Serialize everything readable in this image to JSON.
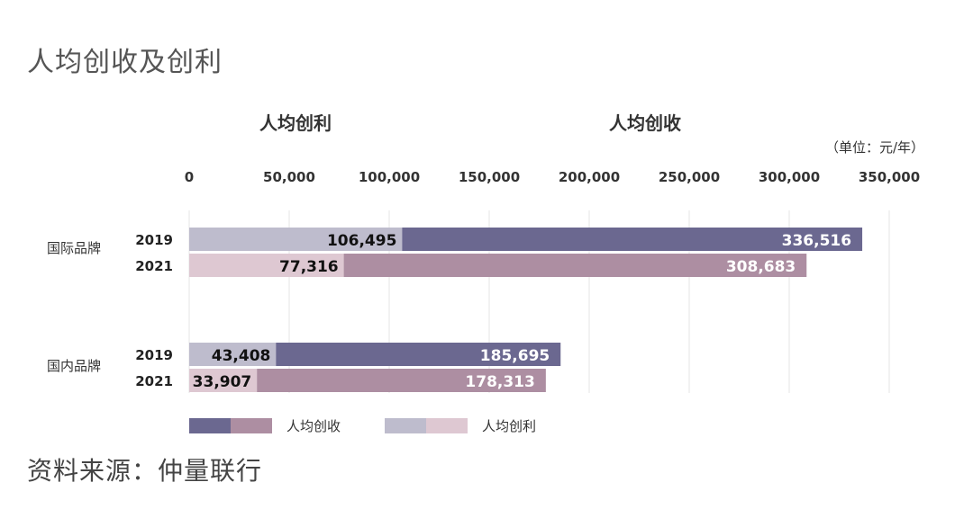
{
  "title": "人均创收及创利",
  "source": "资料来源：仲量联行",
  "chart_data": {
    "type": "bar",
    "orientation": "horizontal",
    "stacking": "overlay",
    "header_left": "人均创利",
    "header_right": "人均创收",
    "unit": "（单位：元/年）",
    "xlim": [
      0,
      350000
    ],
    "ticks": [
      {
        "value": 0,
        "label": "0"
      },
      {
        "value": 50000,
        "label": "50,000"
      },
      {
        "value": 100000,
        "label": "100,000"
      },
      {
        "value": 150000,
        "label": "150,000"
      },
      {
        "value": 200000,
        "label": "200,000"
      },
      {
        "value": 250000,
        "label": "250,000"
      },
      {
        "value": 300000,
        "label": "300,000"
      },
      {
        "value": 350000,
        "label": "350,000"
      }
    ],
    "grid": true,
    "groups": [
      {
        "name": "国际品牌",
        "rows": [
          {
            "year": "2019",
            "profit": 106495,
            "profit_label": "106,495",
            "revenue": 336516,
            "revenue_label": "336,516"
          },
          {
            "year": "2021",
            "profit": 77316,
            "profit_label": "77,316",
            "revenue": 308683,
            "revenue_label": "308,683"
          }
        ]
      },
      {
        "name": "国内品牌",
        "rows": [
          {
            "year": "2019",
            "profit": 43408,
            "profit_label": "43,408",
            "revenue": 185695,
            "revenue_label": "185,695"
          },
          {
            "year": "2021",
            "profit": 33907,
            "profit_label": "33,907",
            "revenue": 178313,
            "revenue_label": "178,313"
          }
        ]
      }
    ],
    "legend": [
      {
        "name": "人均创收",
        "colors": [
          "#6b6890",
          "#ad8ea2"
        ]
      },
      {
        "name": "人均创利",
        "colors": [
          "#bebccd",
          "#dec8d2"
        ]
      }
    ],
    "legend_position": "bottom-left",
    "colors": {
      "revenue_2019": "#6b6890",
      "revenue_2021": "#ad8ea2",
      "profit_2019": "#bebccd",
      "profit_2021": "#dec8d2",
      "grid": "#e6e6e6"
    }
  }
}
